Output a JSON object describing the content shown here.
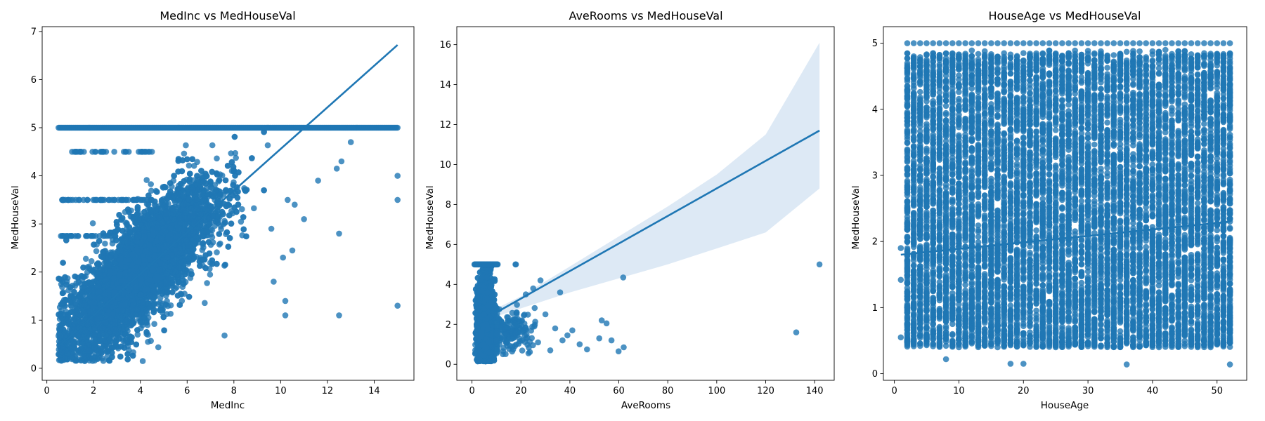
{
  "colors": {
    "points": "#1f77b4",
    "line": "#1f77b4",
    "band": "#c6dbef"
  },
  "chart_data": [
    {
      "type": "scatter",
      "title": "MedInc vs MedHouseVal",
      "xlabel": "MedInc",
      "ylabel": "MedHouseVal",
      "xlim": [
        -0.2,
        15.7
      ],
      "ylim": [
        -0.25,
        7.1
      ],
      "xticks": [
        0,
        2,
        4,
        6,
        8,
        10,
        12,
        14
      ],
      "yticks": [
        0,
        1,
        2,
        3,
        4,
        5,
        6,
        7
      ],
      "regression": {
        "x": [
          0.5,
          15.0
        ],
        "y": [
          0.45,
          6.72
        ]
      },
      "band": [],
      "outliers": [
        [
          15.0,
          4.0
        ],
        [
          15.0,
          3.5
        ],
        [
          15.0,
          1.3
        ],
        [
          12.5,
          2.8
        ],
        [
          12.5,
          1.1
        ],
        [
          10.2,
          1.4
        ],
        [
          10.2,
          1.1
        ],
        [
          7.6,
          0.68
        ],
        [
          11.0,
          3.1
        ],
        [
          9.6,
          2.9
        ],
        [
          10.5,
          2.45
        ],
        [
          10.1,
          2.3
        ],
        [
          9.7,
          1.8
        ],
        [
          11.6,
          3.9
        ],
        [
          12.4,
          4.15
        ],
        [
          12.6,
          4.3
        ],
        [
          13.0,
          4.7
        ],
        [
          10.6,
          3.4
        ],
        [
          10.3,
          3.5
        ],
        [
          4.1,
          0.15
        ]
      ],
      "clusters": [
        {
          "xc": 4.0,
          "xs": 1.6,
          "slope": 0.42,
          "ic": 0.35,
          "sd": 0.55,
          "n": 6000,
          "xmin": 0.5,
          "xmax": 10.5,
          "cap": 5.0
        }
      ],
      "capline": {
        "y": 5.0,
        "x0": 0.5,
        "x1": 15.0,
        "n": 320
      },
      "extra_rows": [
        {
          "y": 3.5,
          "x0": 0.6,
          "x1": 4.5,
          "n": 60
        },
        {
          "y": 2.75,
          "x0": 0.5,
          "x1": 3.0,
          "n": 30
        },
        {
          "y": 4.5,
          "x0": 1.0,
          "x1": 4.5,
          "n": 40
        }
      ]
    },
    {
      "type": "scatter",
      "title": "AveRooms vs MedHouseVal",
      "xlabel": "AveRooms",
      "ylabel": "MedHouseVal",
      "xlim": [
        -6.2,
        148.0
      ],
      "ylim": [
        -0.8,
        16.9
      ],
      "xticks": [
        0,
        20,
        40,
        60,
        80,
        100,
        120,
        140
      ],
      "yticks": [
        0,
        2,
        4,
        6,
        8,
        10,
        12,
        14,
        16
      ],
      "regression": {
        "x": [
          10.0,
          142.0
        ],
        "y": [
          2.6,
          11.7
        ]
      },
      "band": [
        [
          10.0,
          2.4,
          2.8
        ],
        [
          20.0,
          2.8,
          3.4
        ],
        [
          40.0,
          3.6,
          4.9
        ],
        [
          60.0,
          4.3,
          6.4
        ],
        [
          80.0,
          5.0,
          7.9
        ],
        [
          100.0,
          5.8,
          9.5
        ],
        [
          120.0,
          6.6,
          11.5
        ],
        [
          142.0,
          8.8,
          16.1
        ]
      ],
      "outliers": [
        [
          142.0,
          5.0
        ],
        [
          132.5,
          1.6
        ],
        [
          62.0,
          0.85
        ],
        [
          59.9,
          0.65
        ],
        [
          61.8,
          4.35
        ],
        [
          55.0,
          2.05
        ],
        [
          53.0,
          2.2
        ],
        [
          52.0,
          1.3
        ],
        [
          47.0,
          0.75
        ],
        [
          41.0,
          1.7
        ],
        [
          39.0,
          1.45
        ],
        [
          37.0,
          1.2
        ],
        [
          36.0,
          3.6
        ],
        [
          28.0,
          4.2
        ],
        [
          25.0,
          3.8
        ],
        [
          22.0,
          3.5
        ],
        [
          30.0,
          2.5
        ],
        [
          32.0,
          0.7
        ],
        [
          34.0,
          1.8
        ],
        [
          27.0,
          1.1
        ],
        [
          44.0,
          1.0
        ],
        [
          57.0,
          1.2
        ]
      ],
      "clusters": [
        {
          "xc": 5.5,
          "xs": 1.5,
          "slope": 0.0,
          "ic": 2.0,
          "sd": 1.1,
          "n": 5000,
          "xmin": 1.0,
          "xmax": 11.0,
          "cap": 5.0,
          "ymin": 0.15
        },
        {
          "xc": 15.0,
          "xs": 5.5,
          "slope": 0.0,
          "ic": 1.6,
          "sd": 0.5,
          "n": 220,
          "xmin": 10.0,
          "xmax": 26.0,
          "cap": 5.0,
          "ymin": 0.5
        }
      ],
      "capline": {
        "y": 5.0,
        "x0": 1.0,
        "x1": 10.5,
        "n": 60
      },
      "extra_rows": [
        {
          "y": 5.0,
          "x0": 14.0,
          "x1": 19.0,
          "n": 2
        }
      ]
    },
    {
      "type": "scatter",
      "title": "HouseAge vs MedHouseVal",
      "xlabel": "HouseAge",
      "ylabel": "MedHouseVal",
      "xlim": [
        -1.7,
        54.6
      ],
      "ylim": [
        -0.1,
        5.25
      ],
      "xticks": [
        0,
        10,
        20,
        30,
        40,
        50
      ],
      "yticks": [
        0,
        1,
        2,
        3,
        4,
        5
      ],
      "regression": {
        "x": [
          1.0,
          52.0
        ],
        "y": [
          1.8,
          2.3
        ]
      },
      "band": [],
      "outliers": [
        [
          1.0,
          1.9
        ],
        [
          1.0,
          1.42
        ],
        [
          1.0,
          0.55
        ],
        [
          2.0,
          0.6
        ],
        [
          2.0,
          0.48
        ],
        [
          2.0,
          1.05
        ],
        [
          3.0,
          1.55
        ],
        [
          4.0,
          0.42
        ],
        [
          8.0,
          0.22
        ],
        [
          18.0,
          0.15
        ],
        [
          20.0,
          0.15
        ],
        [
          36.0,
          0.14
        ],
        [
          52.0,
          0.14
        ]
      ],
      "columns": {
        "x0": 2,
        "x1": 52,
        "ymin": 0.4,
        "ymax": 4.85,
        "n": 200,
        "capn": 3
      },
      "clusters": [],
      "capline": {
        "y": 5.0,
        "x0": 2.0,
        "x1": 52.0,
        "n": 0
      },
      "extra_rows": []
    }
  ]
}
